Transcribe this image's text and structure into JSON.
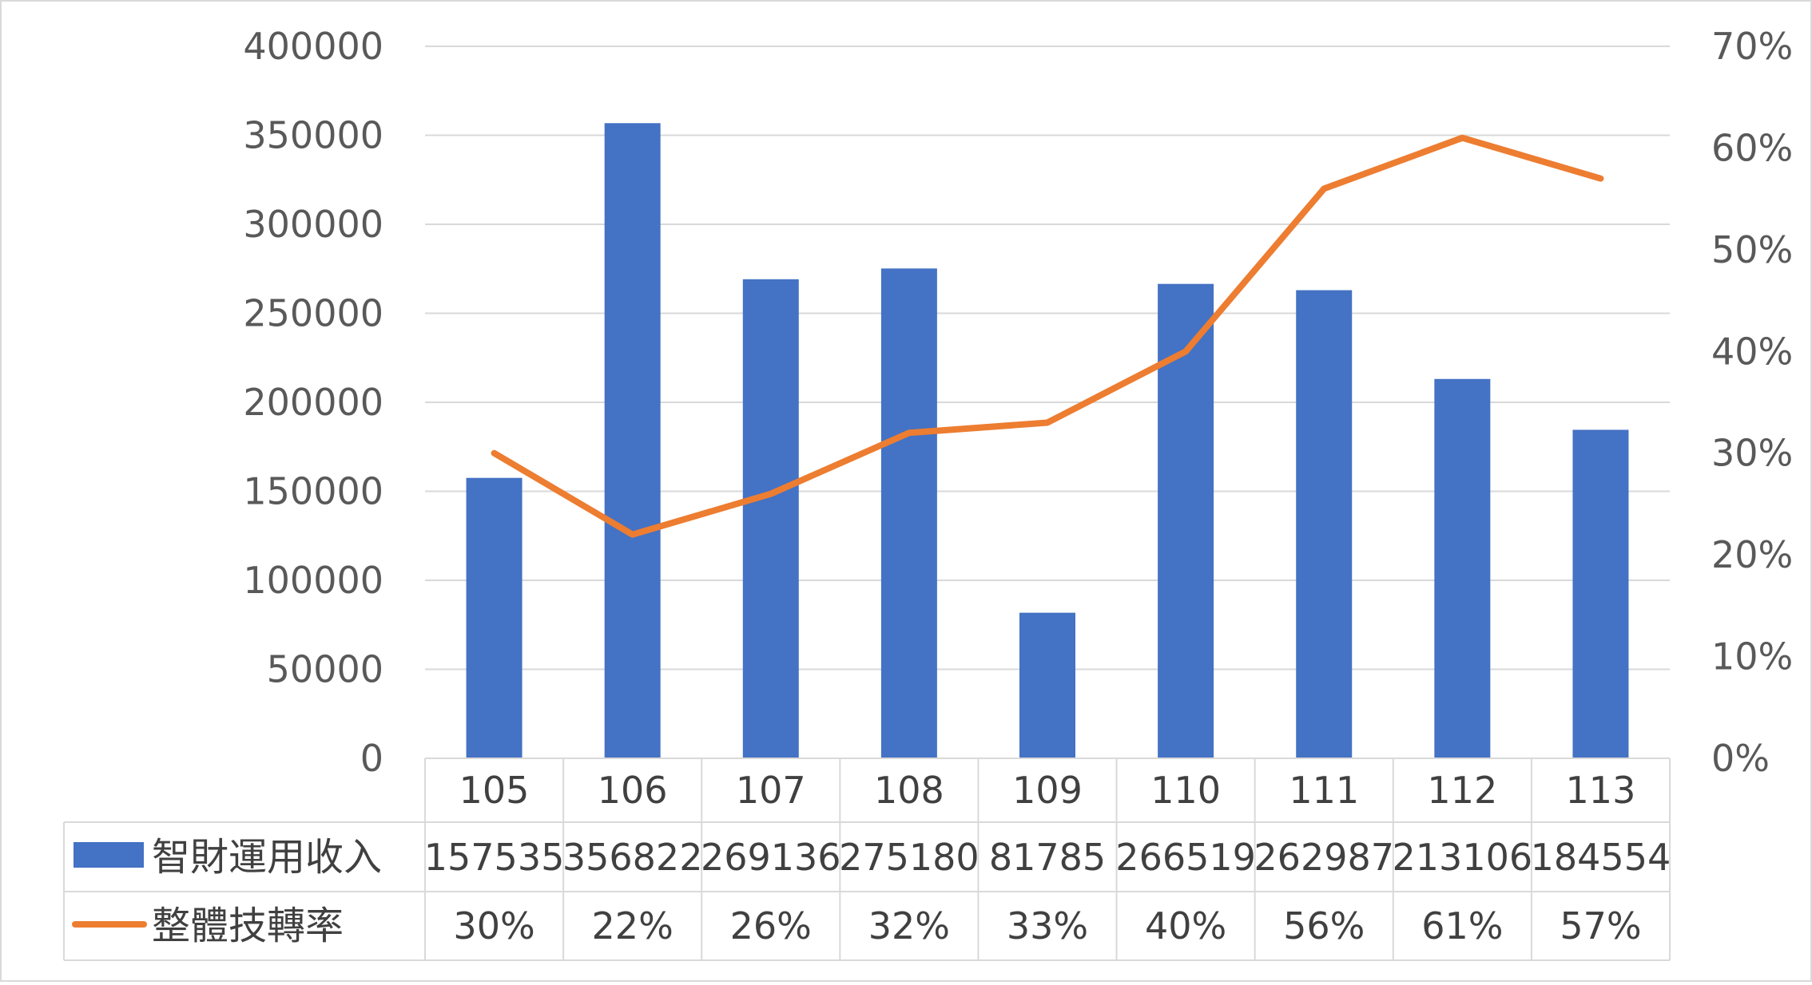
{
  "chart_data": {
    "type": "bar",
    "categories": [
      "105",
      "106",
      "107",
      "108",
      "109",
      "110",
      "111",
      "112",
      "113"
    ],
    "series": [
      {
        "name": "智財運用收入",
        "type": "bar",
        "axis": "left",
        "color": "#4472C4",
        "values": [
          157535,
          356822,
          269136,
          275180,
          81785,
          266519,
          262987,
          213106,
          184554
        ],
        "labels": [
          "157535",
          "356822",
          "269136",
          "275180",
          "81785",
          "266519",
          "262987",
          "213106",
          "184554"
        ]
      },
      {
        "name": "整體技轉率",
        "type": "line",
        "axis": "right",
        "color": "#ED7D31",
        "values": [
          0.3,
          0.22,
          0.26,
          0.32,
          0.33,
          0.4,
          0.56,
          0.61,
          0.57
        ],
        "labels": [
          "30%",
          "22%",
          "26%",
          "32%",
          "33%",
          "40%",
          "56%",
          "61%",
          "57%"
        ]
      }
    ],
    "y_left": {
      "ylim": [
        0,
        400000
      ],
      "ticks": [
        "0",
        "50000",
        "100000",
        "150000",
        "200000",
        "250000",
        "300000",
        "350000",
        "400000"
      ]
    },
    "y_right": {
      "ylim": [
        0,
        0.7
      ],
      "ticks": [
        "0%",
        "10%",
        "20%",
        "30%",
        "40%",
        "50%",
        "60%",
        "70%"
      ]
    },
    "grid": true,
    "legend": "data-table"
  }
}
